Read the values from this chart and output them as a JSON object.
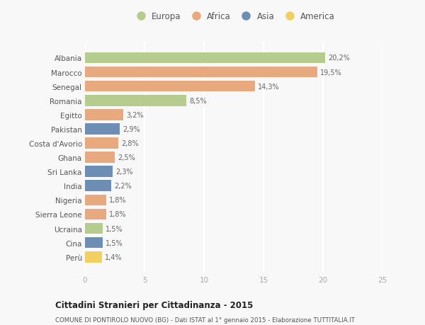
{
  "categories": [
    "Albania",
    "Marocco",
    "Senegal",
    "Romania",
    "Egitto",
    "Pakistan",
    "Costa d'Avorio",
    "Ghana",
    "Sri Lanka",
    "India",
    "Nigeria",
    "Sierra Leone",
    "Ucraina",
    "Cina",
    "Perù"
  ],
  "values": [
    20.2,
    19.5,
    14.3,
    8.5,
    3.2,
    2.9,
    2.8,
    2.5,
    2.3,
    2.2,
    1.8,
    1.8,
    1.5,
    1.5,
    1.4
  ],
  "labels": [
    "20,2%",
    "19,5%",
    "14,3%",
    "8,5%",
    "3,2%",
    "2,9%",
    "2,8%",
    "2,5%",
    "2,3%",
    "2,2%",
    "1,8%",
    "1,8%",
    "1,5%",
    "1,5%",
    "1,4%"
  ],
  "continent": [
    "Europa",
    "Africa",
    "Africa",
    "Europa",
    "Africa",
    "Asia",
    "Africa",
    "Africa",
    "Asia",
    "Asia",
    "Africa",
    "Africa",
    "Europa",
    "Asia",
    "America"
  ],
  "colors": {
    "Europa": "#b5cc8e",
    "Africa": "#e8a97e",
    "Asia": "#6d8eb4",
    "America": "#f0d060"
  },
  "legend_order": [
    "Europa",
    "Africa",
    "Asia",
    "America"
  ],
  "title": "Cittadini Stranieri per Cittadinanza - 2015",
  "subtitle": "COMUNE DI PONTIROLO NUOVO (BG) - Dati ISTAT al 1° gennaio 2015 - Elaborazione TUTTITALIA.IT",
  "xlim": [
    0,
    25
  ],
  "xticks": [
    0,
    5,
    10,
    15,
    20,
    25
  ],
  "background_color": "#f8f8f8",
  "grid_color": "#ffffff",
  "bar_height": 0.78
}
